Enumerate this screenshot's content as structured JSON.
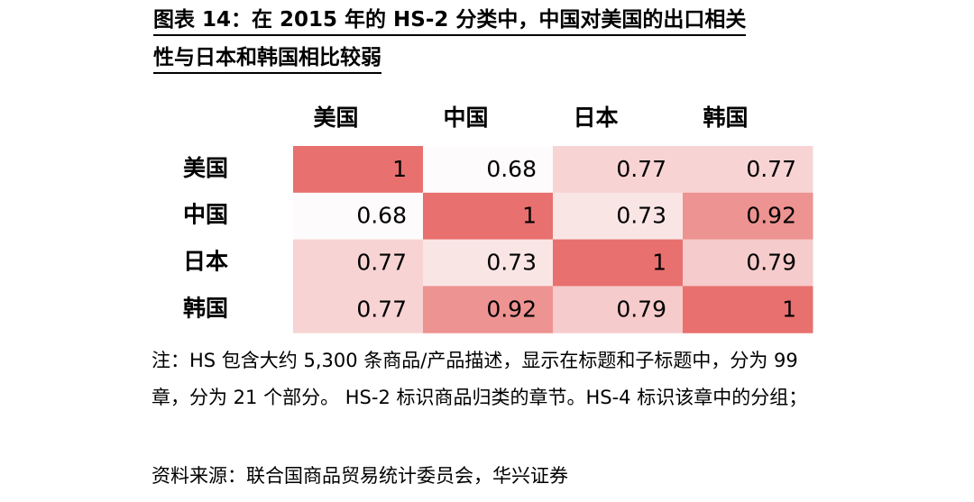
{
  "chart_data": {
    "type": "heatmap",
    "title": [
      "图表 14：在 2015 年的 HS-2 分类中，中国对美国的出口相关",
      "性与日本和韩国相比较弱"
    ],
    "x_categories": [
      "美国",
      "中国",
      "日本",
      "韩国"
    ],
    "y_categories": [
      "美国",
      "中国",
      "日本",
      "韩国"
    ],
    "values": [
      [
        1,
        0.68,
        0.77,
        0.77
      ],
      [
        0.68,
        1,
        0.73,
        0.92
      ],
      [
        0.77,
        0.73,
        1,
        0.79
      ],
      [
        0.77,
        0.92,
        0.79,
        1
      ]
    ],
    "low_color": "#fdfbfb",
    "high_color": "#e8706e",
    "note": "注：HS 包含大约 5,300 条商品/产品描述，显示在标题和子标题中，分为 99 章，分为 21 个部分。 HS-2 标识商品归类的章节。HS-4 标识该章中的分组；",
    "source": "资料来源：联合国商品贸易统计委员会，华兴证券"
  }
}
